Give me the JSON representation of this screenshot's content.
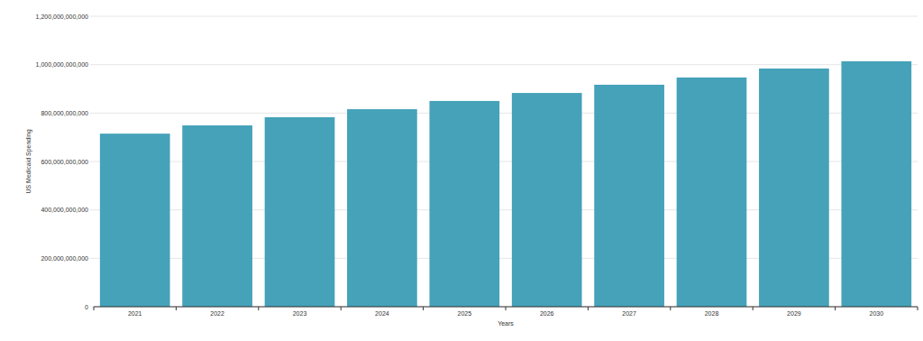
{
  "chart_data": {
    "type": "bar",
    "x_label": "Years",
    "y_label": "US Medicaid Spending",
    "categories": [
      "2021",
      "2022",
      "2023",
      "2024",
      "2025",
      "2026",
      "2027",
      "2028",
      "2029",
      "2030"
    ],
    "values": [
      715000000000,
      749000000000,
      783000000000,
      816000000000,
      850000000000,
      883000000000,
      917000000000,
      947000000000,
      984000000000,
      1014000000000
    ],
    "color": "#45a2b9",
    "ylim": [
      0,
      1200000000000
    ],
    "yticks": [
      0,
      {
        "value": 200000000000,
        "label": "200,000,000,000"
      },
      {
        "value": 400000000000,
        "label": "400,000,000,000"
      },
      {
        "value": 600000000000,
        "label": "600,000,000,000"
      },
      {
        "value": 800000000000,
        "label": "800,000,000,000"
      },
      {
        "value": 1000000000000,
        "label": "1,000,000,000,000"
      },
      {
        "value": 1200000000000,
        "label": "1,200,000,000,000"
      }
    ],
    "grid": true
  }
}
